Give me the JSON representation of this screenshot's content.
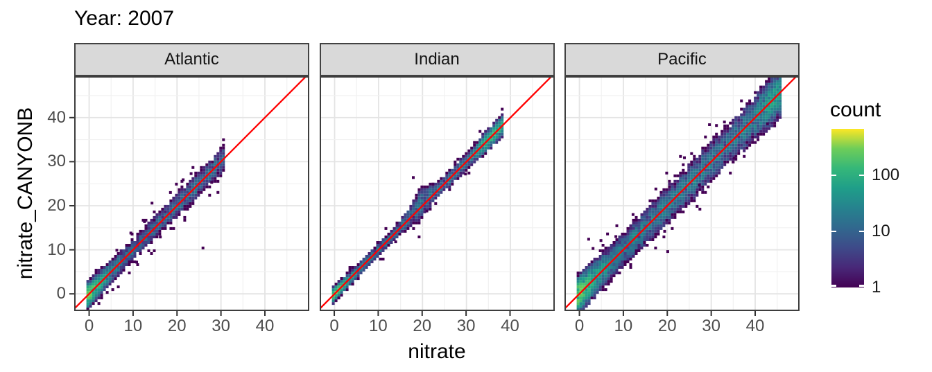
{
  "title": "Year: 2007",
  "axes": {
    "x_label": "nitrate",
    "y_label": "nitrate_CANYONB",
    "x_ticks": [
      0,
      10,
      20,
      30,
      40
    ],
    "y_ticks": [
      0,
      10,
      20,
      30,
      40
    ],
    "x_domain": [
      -3.4,
      50.1
    ],
    "y_domain": [
      -3.9,
      49.4
    ],
    "major_grid_every": 10,
    "minor_grid_every": 5
  },
  "legend": {
    "title": "count",
    "scale": "log10",
    "tick_values": [
      100,
      10,
      1
    ],
    "min_count": 1,
    "max_count": 671,
    "colormap": "viridis"
  },
  "reference_line": {
    "type": "identity",
    "slope": 1,
    "intercept": 0,
    "color": "#ff0000"
  },
  "colors": {
    "strip_fill": "#d9d9d9",
    "strip_border": "#424242",
    "panel_border": "#3d3d3d",
    "panel_bg": "#ffffff",
    "grid_major": "#e4e4e4",
    "grid_minor": "#f1f1f1",
    "axis_text": "#4d4d4d",
    "tick_mark": "#333333",
    "viridis_stops": [
      "#440154",
      "#482878",
      "#3e4a89",
      "#31688e",
      "#26828e",
      "#1f9e89",
      "#35b779",
      "#6dcd59",
      "#fde725"
    ]
  },
  "chart_data": {
    "type": "heatmap",
    "subtype": "bin2d_faceted_scatter_density",
    "x_variable": "nitrate",
    "y_variable": "nitrate_CANYONB",
    "bin_size": 0.63,
    "count_range": [
      1,
      671
    ],
    "facets": [
      {
        "name": "Atlantic",
        "seed": 11,
        "x_min": -0.3,
        "x_max": 30.7,
        "sigma": 1.05,
        "sigma_growth": 0.012,
        "core_a": 340,
        "core_tau": 1.9,
        "core_base": 13,
        "end_boost": 0,
        "end_center": 0,
        "end_width": 1,
        "speckle": 0.55,
        "outliers": [
          [
            25.9,
            10.4
          ],
          [
            12.6,
            16.4
          ],
          [
            9.5,
            13.8
          ],
          [
            14.3,
            20.6
          ],
          [
            23.2,
            27.3
          ],
          [
            27.9,
            25.3
          ],
          [
            18.5,
            23.0
          ],
          [
            10.8,
            7.2
          ],
          [
            16.2,
            12.9
          ],
          [
            21.4,
            25.9
          ],
          [
            6.3,
            9.9
          ]
        ]
      },
      {
        "name": "Indian",
        "seed": 7,
        "x_min": -0.3,
        "x_max": 38.2,
        "sigma": 0.62,
        "sigma_growth": 0.008,
        "core_a": 300,
        "core_tau": 1.8,
        "core_base": 16,
        "end_boost": 110,
        "end_center": 36,
        "end_width": 3.2,
        "speckle": 0.35,
        "bulge": {
          "center": 19.5,
          "width": 2.8,
          "extra": 0.85,
          "bias": 0.8
        },
        "outliers": [
          [
            17.9,
            26.4
          ],
          [
            13.9,
            11.8
          ],
          [
            29.8,
            27.2
          ],
          [
            21.0,
            18.8
          ]
        ]
      },
      {
        "name": "Pacific",
        "seed": 23,
        "x_min": -0.3,
        "x_max": 46.2,
        "sigma": 1.55,
        "sigma_growth": 0.014,
        "core_a": 300,
        "core_tau": 2.3,
        "core_base": 24,
        "end_boost": 45,
        "end_center": 44,
        "end_width": 3.0,
        "speckle": 0.7,
        "outliers": [
          [
            2.1,
            12.4
          ],
          [
            4.9,
            12.1
          ],
          [
            6.4,
            13.6
          ],
          [
            3.1,
            10.3
          ],
          [
            8.3,
            13.0
          ],
          [
            20.1,
            9.6
          ],
          [
            19.4,
            14.2
          ],
          [
            29.6,
            38.4
          ],
          [
            31.2,
            38.2
          ],
          [
            33.0,
            39.0
          ],
          [
            27.3,
            24.7
          ],
          [
            35.2,
            30.8
          ],
          [
            42.8,
            38.6
          ],
          [
            17.4,
            23.8
          ],
          [
            23.9,
            30.9
          ],
          [
            12.2,
            18.0
          ]
        ]
      }
    ]
  }
}
